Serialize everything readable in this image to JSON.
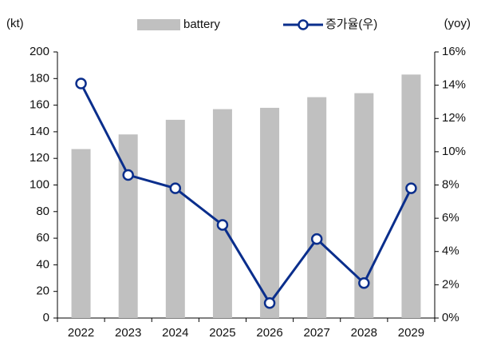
{
  "chart_data": {
    "type": "bar",
    "y_label": "(kt)",
    "y2_label": "(yoy)",
    "categories": [
      "2022",
      "2023",
      "2024",
      "2025",
      "2026",
      "2027",
      "2028",
      "2029"
    ],
    "series": [
      {
        "name": "battery",
        "type": "bar",
        "color": "#c0c0c0",
        "values": [
          127,
          138,
          149,
          157,
          158,
          166,
          169,
          183
        ]
      },
      {
        "name": "증가율(우)",
        "type": "line",
        "axis": "y2",
        "color": "#0a2e8c",
        "values": [
          14.1,
          8.6,
          7.8,
          5.6,
          0.9,
          4.75,
          2.1,
          7.8
        ]
      }
    ],
    "ylim": [
      0,
      200
    ],
    "yticks": [
      0,
      20,
      40,
      60,
      80,
      100,
      120,
      140,
      160,
      180,
      200
    ],
    "y2lim": [
      0,
      16
    ],
    "y2ticks": [
      {
        "value": 0,
        "label": "0%"
      },
      {
        "value": 2,
        "label": "2%"
      },
      {
        "value": 4,
        "label": "4%"
      },
      {
        "value": 6,
        "label": "6%"
      },
      {
        "value": 8,
        "label": "8%"
      },
      {
        "value": 10,
        "label": "10%"
      },
      {
        "value": 12,
        "label": "12%"
      },
      {
        "value": 14,
        "label": "14%"
      },
      {
        "value": 16,
        "label": "16%"
      }
    ],
    "grid": false
  }
}
